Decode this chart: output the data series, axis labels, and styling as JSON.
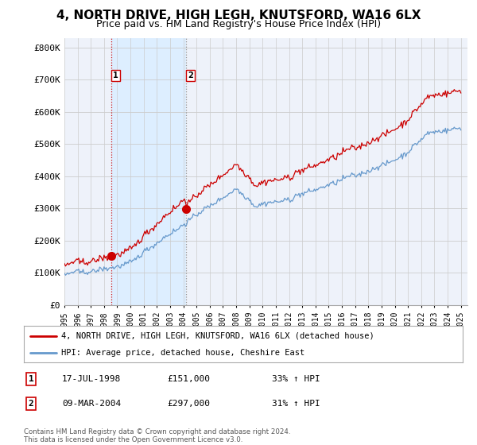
{
  "title": "4, NORTH DRIVE, HIGH LEGH, KNUTSFORD, WA16 6LX",
  "subtitle": "Price paid vs. HM Land Registry's House Price Index (HPI)",
  "ylabel_ticks": [
    "£0",
    "£100K",
    "£200K",
    "£300K",
    "£400K",
    "£500K",
    "£600K",
    "£700K",
    "£800K"
  ],
  "ytick_values": [
    0,
    100000,
    200000,
    300000,
    400000,
    500000,
    600000,
    700000,
    800000
  ],
  "ylim": [
    0,
    830000
  ],
  "xlim_start": 1995.0,
  "xlim_end": 2025.5,
  "xticks": [
    1995,
    1996,
    1997,
    1998,
    1999,
    2000,
    2001,
    2002,
    2003,
    2004,
    2005,
    2006,
    2007,
    2008,
    2009,
    2010,
    2011,
    2012,
    2013,
    2014,
    2015,
    2016,
    2017,
    2018,
    2019,
    2020,
    2021,
    2022,
    2023,
    2024,
    2025
  ],
  "red_line_color": "#cc0000",
  "blue_line_color": "#6699cc",
  "shade_color": "#ddeeff",
  "sale1_x": 1998.54,
  "sale1_y": 151000,
  "sale2_x": 2004.19,
  "sale2_y": 297000,
  "legend_line1": "4, NORTH DRIVE, HIGH LEGH, KNUTSFORD, WA16 6LX (detached house)",
  "legend_line2": "HPI: Average price, detached house, Cheshire East",
  "table_row1_num": "1",
  "table_row1_date": "17-JUL-1998",
  "table_row1_price": "£151,000",
  "table_row1_hpi": "33% ↑ HPI",
  "table_row2_num": "2",
  "table_row2_date": "09-MAR-2004",
  "table_row2_price": "£297,000",
  "table_row2_hpi": "31% ↑ HPI",
  "copyright_text": "Contains HM Land Registry data © Crown copyright and database right 2024.\nThis data is licensed under the Open Government Licence v3.0.",
  "background_color": "#ffffff",
  "plot_bg_color": "#eef2fa",
  "grid_color": "#cccccc"
}
